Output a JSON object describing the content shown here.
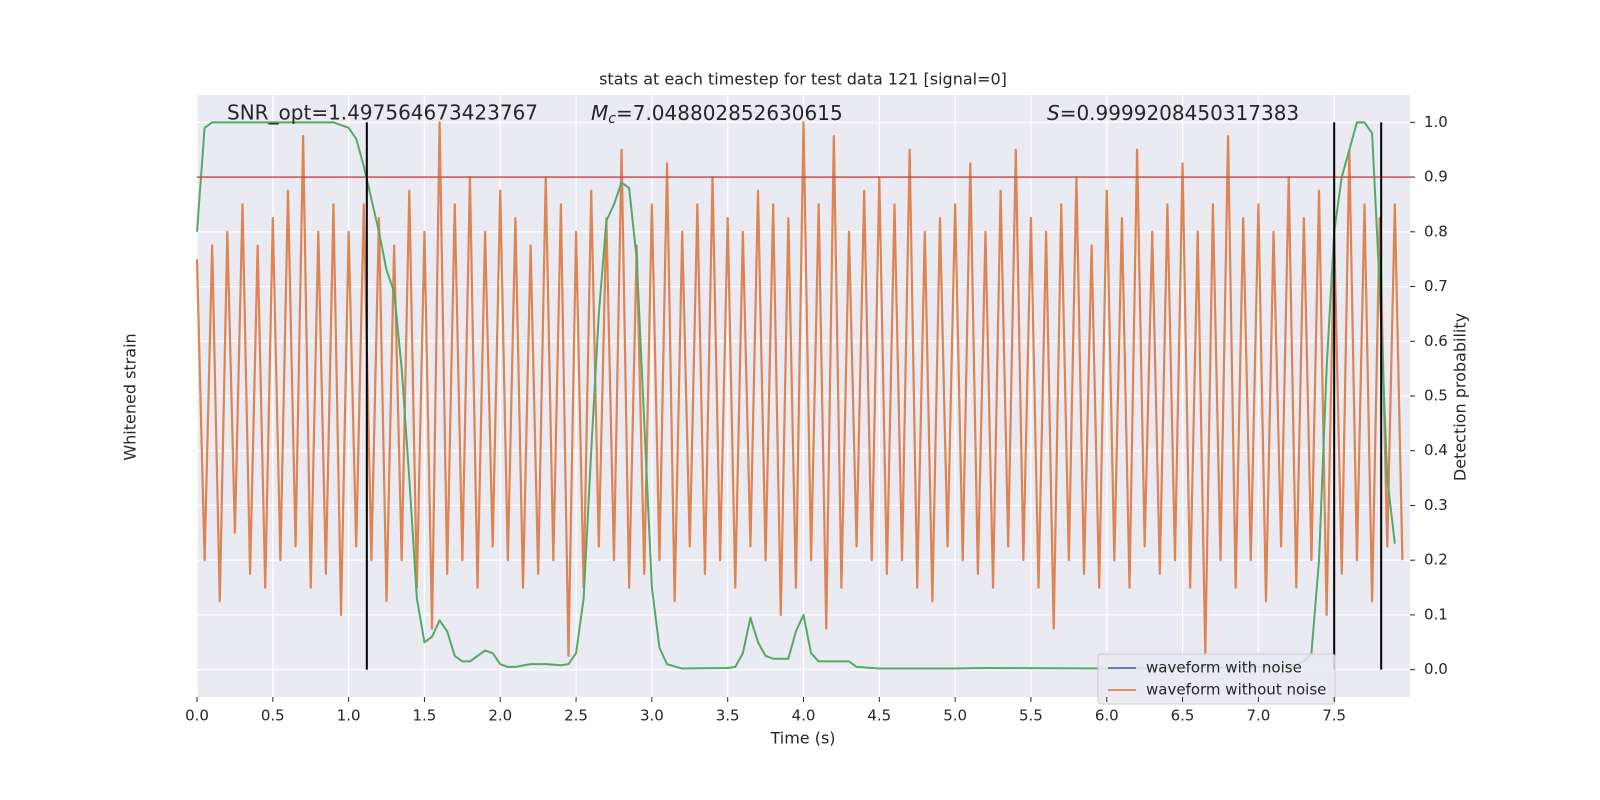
{
  "chart_data": {
    "type": "line",
    "title": "stats at each timestep for test data 121 [signal=0]",
    "xlabel": "Time (s)",
    "ylabel": "Whitened strain",
    "y2label": "Detection probability",
    "annotations": [
      {
        "text": "SNR_opt=1.497564673423767"
      },
      {
        "symbol": "M",
        "subscript": "c",
        "text": "=7.048802852630615"
      },
      {
        "symbol": "S",
        "text": "=0.9999208450317383"
      }
    ],
    "xlim": [
      0,
      8
    ],
    "xticks": [
      {
        "value": 0,
        "label": "0.0"
      },
      0.5,
      {
        "value": 1,
        "label": "1.0"
      },
      1.5,
      {
        "value": 2,
        "label": "2.0"
      },
      2.5,
      {
        "value": 3,
        "label": "3.0"
      },
      3.5,
      {
        "value": 4,
        "label": "4.0"
      },
      4.5,
      {
        "value": 5,
        "label": "5.0"
      },
      5.5,
      {
        "value": 6,
        "label": "6.0"
      },
      6.5,
      {
        "value": 7,
        "label": "7.0"
      },
      7.5
    ],
    "ylim": [
      -1.1,
      1.1
    ],
    "y2lim": [
      -0.05,
      1.05
    ],
    "y2ticks": [
      {
        "value": 0,
        "label": "0.0"
      },
      0.1,
      0.2,
      0.3,
      0.4,
      0.5,
      0.6,
      0.7,
      0.8,
      0.9,
      {
        "value": 1,
        "label": "1.0"
      }
    ],
    "grid": true,
    "legend": "lower right",
    "series": [
      {
        "name": "waveform with noise",
        "color": "#4c72b0",
        "x": [],
        "values": []
      },
      {
        "name": "waveform without noise",
        "color": "#dd8452",
        "x": [
          0,
          0.05,
          0.1,
          0.15,
          0.2,
          0.25,
          0.3,
          0.35,
          0.4,
          0.45,
          0.5,
          0.55,
          0.6,
          0.65,
          0.7,
          0.75,
          0.8,
          0.85,
          0.9,
          0.95,
          1,
          1.05,
          1.1,
          1.15,
          1.2,
          1.25,
          1.3,
          1.35,
          1.4,
          1.45,
          1.5,
          1.55,
          1.6,
          1.65,
          1.7,
          1.75,
          1.8,
          1.85,
          1.9,
          1.95,
          2,
          2.05,
          2.1,
          2.15,
          2.2,
          2.25,
          2.3,
          2.35,
          2.4,
          2.45,
          2.5,
          2.55,
          2.6,
          2.65,
          2.7,
          2.75,
          2.8,
          2.85,
          2.9,
          2.95,
          3,
          3.05,
          3.1,
          3.15,
          3.2,
          3.25,
          3.3,
          3.35,
          3.4,
          3.45,
          3.5,
          3.55,
          3.6,
          3.65,
          3.7,
          3.75,
          3.8,
          3.85,
          3.9,
          3.95,
          4,
          4.05,
          4.1,
          4.15,
          4.2,
          4.25,
          4.3,
          4.35,
          4.4,
          4.45,
          4.5,
          4.55,
          4.6,
          4.65,
          4.7,
          4.75,
          4.8,
          4.85,
          4.9,
          4.95,
          5,
          5.05,
          5.1,
          5.15,
          5.2,
          5.25,
          5.3,
          5.35,
          5.4,
          5.45,
          5.5,
          5.55,
          5.6,
          5.65,
          5.7,
          5.75,
          5.8,
          5.85,
          5.9,
          5.95,
          6,
          6.05,
          6.1,
          6.15,
          6.2,
          6.25,
          6.3,
          6.35,
          6.4,
          6.45,
          6.5,
          6.55,
          6.6,
          6.65,
          6.7,
          6.75,
          6.8,
          6.85,
          6.9,
          6.95,
          7,
          7.05,
          7.1,
          7.15,
          7.2,
          7.25,
          7.3,
          7.35,
          7.4,
          7.45,
          7.5,
          7.55,
          7.6,
          7.65,
          7.7,
          7.75,
          7.8,
          7.85,
          7.9,
          7.95
        ],
        "values": [
          0.5,
          -0.6,
          0.55,
          -0.75,
          0.6,
          -0.5,
          0.7,
          -0.65,
          0.55,
          -0.7,
          0.65,
          -0.6,
          0.75,
          -0.55,
          0.95,
          -0.7,
          0.6,
          -0.65,
          0.7,
          -0.8,
          0.6,
          -0.55,
          0.7,
          -0.6,
          0.65,
          -0.75,
          0.55,
          -0.6,
          0.75,
          -0.7,
          0.6,
          -0.85,
          1.0,
          -0.65,
          0.7,
          -0.6,
          0.8,
          -0.7,
          0.6,
          -0.55,
          0.75,
          -0.6,
          0.65,
          -0.7,
          0.55,
          -0.65,
          0.8,
          -0.6,
          0.7,
          -0.95,
          0.6,
          -0.7,
          0.75,
          -0.55,
          0.65,
          -0.6,
          0.9,
          -0.7,
          0.55,
          -0.65,
          0.7,
          -0.6,
          0.85,
          -0.75,
          0.6,
          -0.55,
          0.7,
          -0.65,
          0.8,
          -0.6,
          0.65,
          -0.7,
          0.6,
          -0.55,
          0.75,
          -0.6,
          0.7,
          -0.8,
          0.65,
          -0.7,
          1.0,
          -0.6,
          0.7,
          -0.85,
          0.95,
          -0.7,
          0.6,
          -0.55,
          0.75,
          -0.6,
          0.8,
          -0.65,
          0.7,
          -0.6,
          0.9,
          -0.7,
          0.6,
          -0.75,
          0.65,
          -0.55,
          0.7,
          -0.6,
          0.85,
          -0.65,
          0.6,
          -0.7,
          0.75,
          -0.55,
          0.9,
          -0.6,
          0.65,
          -0.7,
          0.6,
          -0.85,
          0.7,
          -0.6,
          0.8,
          -0.65,
          0.55,
          -0.7,
          0.75,
          -0.6,
          0.65,
          -0.7,
          0.9,
          -0.55,
          0.6,
          -0.65,
          0.7,
          -0.6,
          0.85,
          -0.7,
          0.6,
          -0.95,
          0.7,
          -0.6,
          0.95,
          -0.7,
          0.65,
          -0.6,
          0.7,
          -0.75,
          0.6,
          -0.55,
          0.8,
          -0.7,
          0.65,
          -0.6,
          0.75,
          -0.8,
          0.6,
          -0.65,
          0.9,
          -0.6,
          0.7,
          -0.75,
          0.65,
          -0.55,
          0.7,
          -0.6
        ]
      },
      {
        "color": "#55a868",
        "axis": "y2",
        "x": [
          0,
          0.05,
          0.1,
          0.9,
          1,
          1.05,
          1.1,
          1.2,
          1.25,
          1.3,
          1.35,
          1.4,
          1.45,
          1.5,
          1.55,
          1.6,
          1.65,
          1.7,
          1.75,
          1.8,
          1.9,
          1.95,
          2,
          2.05,
          2.1,
          2.2,
          2.3,
          2.4,
          2.45,
          2.5,
          2.55,
          2.6,
          2.65,
          2.7,
          2.75,
          2.8,
          2.85,
          2.9,
          2.95,
          3,
          3.05,
          3.1,
          3.2,
          3.5,
          3.55,
          3.6,
          3.65,
          3.7,
          3.75,
          3.8,
          3.9,
          3.95,
          4,
          4.05,
          4.1,
          4.2,
          4.3,
          4.35,
          4.5,
          5,
          5.2,
          6,
          7.2,
          7.3,
          7.35,
          7.4,
          7.45,
          7.5,
          7.55,
          7.6,
          7.65,
          7.7,
          7.75,
          7.8,
          7.85,
          7.9
        ],
        "values": [
          0.8,
          0.99,
          1.0,
          1.0,
          0.99,
          0.97,
          0.92,
          0.8,
          0.73,
          0.69,
          0.55,
          0.35,
          0.13,
          0.05,
          0.06,
          0.09,
          0.07,
          0.025,
          0.015,
          0.015,
          0.035,
          0.03,
          0.01,
          0.005,
          0.005,
          0.01,
          0.01,
          0.008,
          0.01,
          0.03,
          0.13,
          0.4,
          0.65,
          0.82,
          0.85,
          0.89,
          0.88,
          0.75,
          0.45,
          0.15,
          0.04,
          0.01,
          0.002,
          0.003,
          0.005,
          0.03,
          0.095,
          0.05,
          0.025,
          0.02,
          0.02,
          0.07,
          0.1,
          0.03,
          0.015,
          0.015,
          0.015,
          0.005,
          0.002,
          0.002,
          0.003,
          0.002,
          0.005,
          0.015,
          0.03,
          0.2,
          0.55,
          0.8,
          0.9,
          0.95,
          1.0,
          1.0,
          0.98,
          0.7,
          0.35,
          0.23
        ]
      }
    ],
    "vlines": [
      1.12,
      7.5,
      7.81
    ],
    "hline": 0.9,
    "hline_color": "#c44e52"
  }
}
